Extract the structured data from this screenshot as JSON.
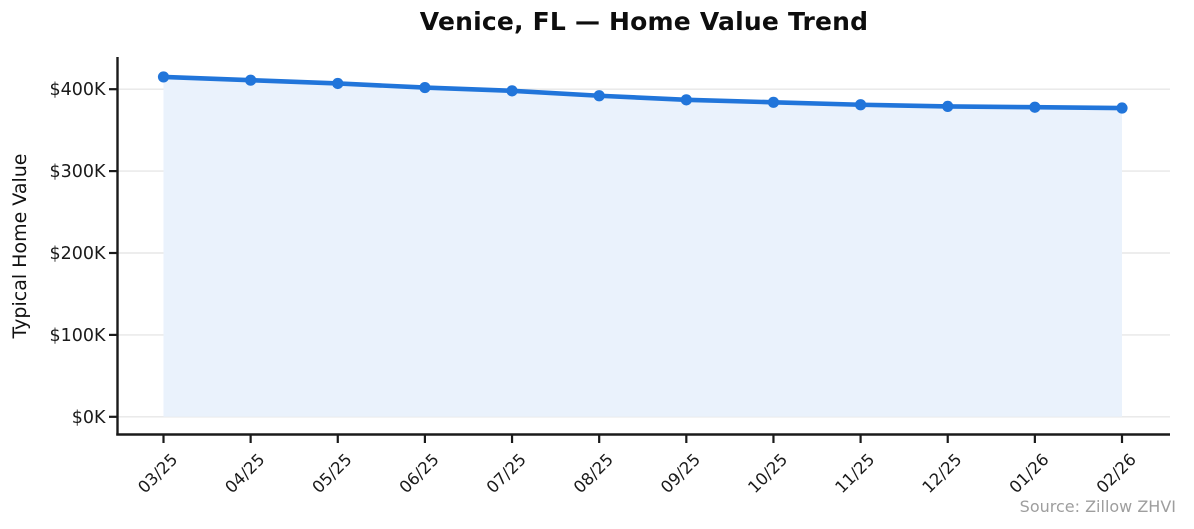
{
  "chart_data": {
    "type": "line",
    "title": "Venice, FL — Home Value Trend",
    "ylabel": "Typical Home Value",
    "source": "Source: Zillow ZHVI",
    "categories": [
      "03/25",
      "04/25",
      "05/25",
      "06/25",
      "07/25",
      "08/25",
      "09/25",
      "10/25",
      "11/25",
      "12/25",
      "01/26",
      "02/26"
    ],
    "series": [
      {
        "name": "Typical Home Value",
        "values": [
          415000,
          411000,
          407000,
          402000,
          398000,
          392000,
          387000,
          384000,
          381000,
          379000,
          378000,
          377000
        ]
      }
    ],
    "yticks": [
      {
        "value": 0,
        "label": "$0K"
      },
      {
        "value": 100000,
        "label": "$100K"
      },
      {
        "value": 200000,
        "label": "$200K"
      },
      {
        "value": 300000,
        "label": "$300K"
      },
      {
        "value": 400000,
        "label": "$400K"
      }
    ],
    "ylim": [
      -21000,
      441000
    ],
    "grid": "horizontal",
    "legend": "none",
    "area_fill": true,
    "marker": "circle",
    "colors": {
      "line": "#2175da",
      "fill": "#eaf2fc",
      "axis": "#1a1a1a",
      "gridline": "#e7e7e7",
      "title": "#0d0d0d",
      "tick_text": "#1a1a1a",
      "source_text": "#9e9e9e"
    }
  }
}
